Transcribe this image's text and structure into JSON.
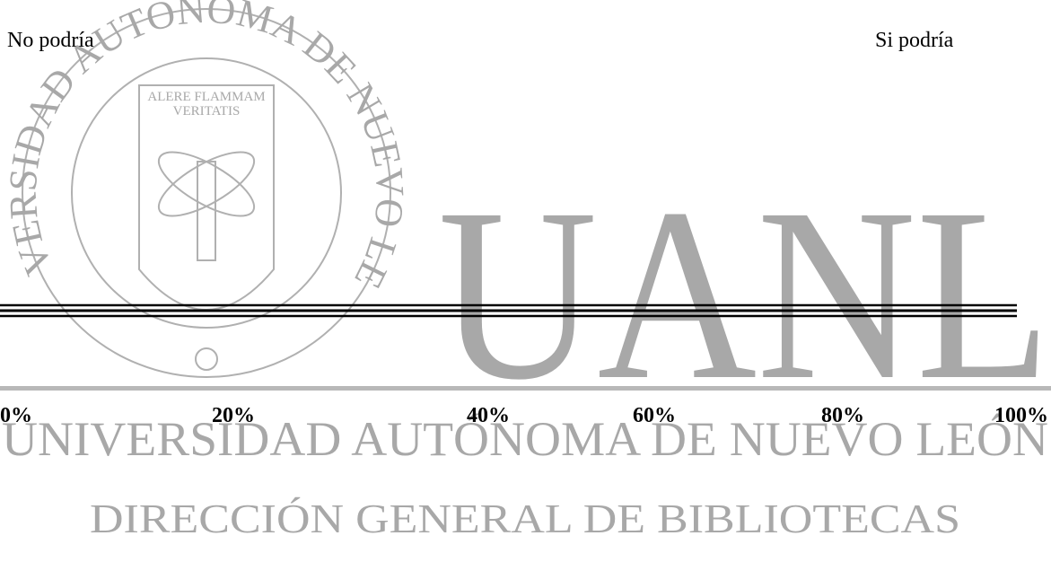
{
  "scale": {
    "left_label": "No podría",
    "right_label": "Si podría",
    "ticks": [
      "0%",
      "20%",
      "40%",
      "60%",
      "80%",
      "100%"
    ]
  },
  "watermark": {
    "seal_ring": "UNIVERSIDAD AUTONOMA DE NUEVO LEON",
    "seal_motto_1": "ALERE FLAMMAM",
    "seal_motto_2": "VERITATIS",
    "logo": "UANL",
    "university": "UNIVERSIDAD AUTÓNOMA DE NUEVO LEÓN",
    "department": "DIRECCIÓN GENERAL DE BIBLIOTECAS"
  }
}
